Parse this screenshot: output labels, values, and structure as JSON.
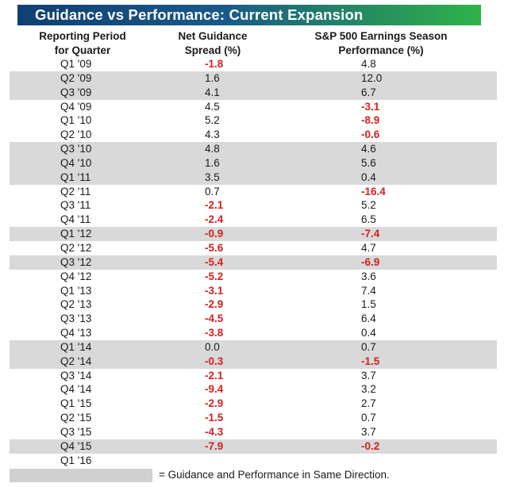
{
  "title": "Guidance vs  Performance: Current Expansion",
  "headers": {
    "period": [
      "Reporting Period",
      "for Quarter"
    ],
    "guidance": [
      "Net Guidance",
      "Spread (%)"
    ],
    "performance": [
      "S&P 500 Earnings Season",
      "Performance (%)"
    ]
  },
  "rows": [
    {
      "period": "Q1 '09",
      "guidance": "-1.8",
      "performance": "4.8",
      "same_direction": false
    },
    {
      "period": "Q2 '09",
      "guidance": "1.6",
      "performance": "12.0",
      "same_direction": true
    },
    {
      "period": "Q3 '09",
      "guidance": "4.1",
      "performance": "6.7",
      "same_direction": true
    },
    {
      "period": "Q4 '09",
      "guidance": "4.5",
      "performance": "-3.1",
      "same_direction": false
    },
    {
      "period": "Q1 '10",
      "guidance": "5.2",
      "performance": "-8.9",
      "same_direction": false
    },
    {
      "period": "Q2 '10",
      "guidance": "4.3",
      "performance": "-0.6",
      "same_direction": false
    },
    {
      "period": "Q3 '10",
      "guidance": "4.8",
      "performance": "4.6",
      "same_direction": true
    },
    {
      "period": "Q4 '10",
      "guidance": "1.6",
      "performance": "5.6",
      "same_direction": true
    },
    {
      "period": "Q1 '11",
      "guidance": "3.5",
      "performance": "0.4",
      "same_direction": true
    },
    {
      "period": "Q2 '11",
      "guidance": "0.7",
      "performance": "-16.4",
      "same_direction": false
    },
    {
      "period": "Q3 '11",
      "guidance": "-2.1",
      "performance": "5.2",
      "same_direction": false
    },
    {
      "period": "Q4 '11",
      "guidance": "-2.4",
      "performance": "6.5",
      "same_direction": false
    },
    {
      "period": "Q1 '12",
      "guidance": "-0.9",
      "performance": "-7.4",
      "same_direction": true
    },
    {
      "period": "Q2 '12",
      "guidance": "-5.6",
      "performance": "4.7",
      "same_direction": false
    },
    {
      "period": "Q3 '12",
      "guidance": "-5.4",
      "performance": "-6.9",
      "same_direction": true
    },
    {
      "period": "Q4 '12",
      "guidance": "-5.2",
      "performance": "3.6",
      "same_direction": false
    },
    {
      "period": "Q1 '13",
      "guidance": "-3.1",
      "performance": "7.4",
      "same_direction": false
    },
    {
      "period": "Q2 '13",
      "guidance": "-2.9",
      "performance": "1.5",
      "same_direction": false
    },
    {
      "period": "Q3 '13",
      "guidance": "-4.5",
      "performance": "6.4",
      "same_direction": false
    },
    {
      "period": "Q4 '13",
      "guidance": "-3.8",
      "performance": "0.4",
      "same_direction": false
    },
    {
      "period": "Q1 '14",
      "guidance": "0.0",
      "performance": "0.7",
      "same_direction": true
    },
    {
      "period": "Q2 '14",
      "guidance": "-0.3",
      "performance": "-1.5",
      "same_direction": true
    },
    {
      "period": "Q3 '14",
      "guidance": "-2.1",
      "performance": "3.7",
      "same_direction": false
    },
    {
      "period": "Q4 '14",
      "guidance": "-9.4",
      "performance": "3.2",
      "same_direction": false
    },
    {
      "period": "Q1 '15",
      "guidance": "-2.9",
      "performance": "2.7",
      "same_direction": false
    },
    {
      "period": "Q2 '15",
      "guidance": "-1.5",
      "performance": "0.7",
      "same_direction": false
    },
    {
      "period": "Q3 '15",
      "guidance": "-4.3",
      "performance": "3.7",
      "same_direction": false
    },
    {
      "period": "Q4 '15",
      "guidance": "-7.9",
      "performance": "-0.2",
      "same_direction": true
    },
    {
      "period": "Q1 '16",
      "guidance": "",
      "performance": "",
      "same_direction": false
    }
  ],
  "legend": "= Guidance and Performance in Same Direction.",
  "colors": {
    "negative": "#d42020",
    "shade": "#d9d9d9",
    "banner_start": "#0f3f73",
    "banner_end": "#2fb34a"
  }
}
